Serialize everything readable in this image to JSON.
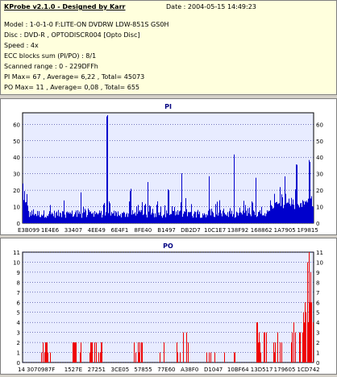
{
  "header": {
    "title": "KProbe v2.1.0 - Designed by Karr",
    "date": "Date : 2004-05-15 14:49:23",
    "model": "Model : 1-0-1-0 F:LITE-ON DVDRW LDW-851S   GS0H",
    "disc": "Disc : DVD-R , OPTODISCR004 [Opto Disc]",
    "speed": "Speed : 4x",
    "ecc": "ECC blocks sum (PI/PO) : 8/1",
    "range": "Scanned range : 0 - 229DFFh",
    "pi_stats": "PI Max= 67 , Average= 6,22 , Total= 45073",
    "po_stats": "PO Max= 11 , Average= 0,08 , Total= 655"
  },
  "colors": {
    "plot_bg": "#e8ecff",
    "pi_bar": "#0000cc",
    "po_bar": "#ee0000",
    "grid": "#000080",
    "title_text": "#000080"
  },
  "chart_data": [
    {
      "type": "bar",
      "title": "PI",
      "ylim": [
        0,
        67
      ],
      "yticks": [
        0,
        10,
        20,
        30,
        40,
        50,
        60
      ],
      "xticks": [
        "E3B099",
        "1E4E6",
        "33407",
        "4EE49",
        "6E4F1",
        "8FE40",
        "B1497",
        "DB2D7",
        "10C1E7",
        "138F92",
        "168862",
        "1A7905",
        "1F9815"
      ],
      "grid": true,
      "baseline": 8,
      "noise": 8,
      "spikes": [
        [
          0.0,
          25
        ],
        [
          0.2,
          20
        ],
        [
          0.29,
          67
        ],
        [
          0.37,
          21
        ],
        [
          0.43,
          25
        ],
        [
          0.5,
          22
        ],
        [
          0.545,
          32
        ],
        [
          0.64,
          30
        ],
        [
          0.725,
          42
        ],
        [
          0.8,
          28
        ],
        [
          0.9,
          30
        ],
        [
          0.94,
          36
        ],
        [
          0.985,
          40
        ]
      ]
    },
    {
      "type": "bar",
      "title": "PO",
      "ylim": [
        0,
        11
      ],
      "yticks": [
        0,
        1,
        2,
        3,
        4,
        5,
        6,
        7,
        8,
        9,
        10,
        11
      ],
      "xticks": [
        "14 3070",
        "987F",
        "1527E",
        "27251",
        "3CE05",
        "57855",
        "77E60",
        "A38F0",
        "D1047",
        "10BF64",
        "13D517",
        "179605",
        "1CD742"
      ],
      "grid": true,
      "clusters": [
        [
          0.06,
          0.1,
          2
        ],
        [
          0.15,
          0.2,
          2
        ],
        [
          0.22,
          0.28,
          2
        ],
        [
          0.33,
          0.34,
          2
        ],
        [
          0.38,
          0.41,
          2
        ],
        [
          0.46,
          0.49,
          2
        ],
        [
          0.52,
          0.55,
          2
        ],
        [
          0.55,
          0.57,
          4
        ],
        [
          0.63,
          0.66,
          2
        ],
        [
          0.68,
          0.7,
          3
        ],
        [
          0.72,
          0.73,
          3
        ],
        [
          0.8,
          0.84,
          4
        ],
        [
          0.86,
          0.9,
          3
        ],
        [
          0.92,
          0.96,
          5
        ],
        [
          0.96,
          1.0,
          11
        ]
      ]
    }
  ]
}
